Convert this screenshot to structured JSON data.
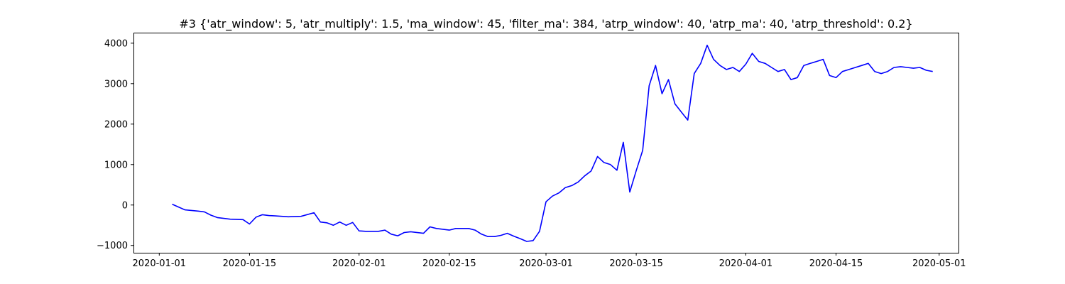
{
  "chart_data": {
    "type": "line",
    "title": "#3 {'atr_window': 5, 'atr_multiply': 1.5, 'ma_window': 45, 'filter_ma': 384, 'atrp_window': 40, 'atrp_ma': 40, 'atrp_threshold': 0.2}",
    "xlabel": "",
    "ylabel": "",
    "xlim": [
      "2019-12-28",
      "2020-05-04"
    ],
    "ylim": [
      -1180,
      4260
    ],
    "grid": false,
    "x_ticks": [
      "2020-01-01",
      "2020-01-15",
      "2020-02-01",
      "2020-02-15",
      "2020-03-01",
      "2020-03-15",
      "2020-04-01",
      "2020-04-15",
      "2020-05-01"
    ],
    "y_ticks": [
      -1000,
      0,
      1000,
      2000,
      3000,
      4000
    ],
    "series": [
      {
        "color": "#0000ff",
        "x": [
          "2020-01-03",
          "2020-01-04",
          "2020-01-05",
          "2020-01-07",
          "2020-01-08",
          "2020-01-09",
          "2020-01-10",
          "2020-01-12",
          "2020-01-14",
          "2020-01-15",
          "2020-01-16",
          "2020-01-17",
          "2020-01-18",
          "2020-01-19",
          "2020-01-21",
          "2020-01-23",
          "2020-01-25",
          "2020-01-26",
          "2020-01-27",
          "2020-01-28",
          "2020-01-29",
          "2020-01-30",
          "2020-01-31",
          "2020-02-01",
          "2020-02-02",
          "2020-02-04",
          "2020-02-05",
          "2020-02-06",
          "2020-02-07",
          "2020-02-08",
          "2020-02-09",
          "2020-02-11",
          "2020-02-12",
          "2020-02-13",
          "2020-02-14",
          "2020-02-15",
          "2020-02-16",
          "2020-02-18",
          "2020-02-19",
          "2020-02-20",
          "2020-02-21",
          "2020-02-22",
          "2020-02-23",
          "2020-02-24",
          "2020-02-25",
          "2020-02-26",
          "2020-02-27",
          "2020-02-28",
          "2020-02-29",
          "2020-03-01",
          "2020-03-02",
          "2020-03-03",
          "2020-03-04",
          "2020-03-05",
          "2020-03-06",
          "2020-03-07",
          "2020-03-08",
          "2020-03-09",
          "2020-03-10",
          "2020-03-11",
          "2020-03-12",
          "2020-03-13",
          "2020-03-14",
          "2020-03-15",
          "2020-03-16",
          "2020-03-17",
          "2020-03-18",
          "2020-03-19",
          "2020-03-20",
          "2020-03-21",
          "2020-03-22",
          "2020-03-23",
          "2020-03-24",
          "2020-03-25",
          "2020-03-26",
          "2020-03-27",
          "2020-03-28",
          "2020-03-29",
          "2020-03-30",
          "2020-03-31",
          "2020-04-01",
          "2020-04-02",
          "2020-04-03",
          "2020-04-04",
          "2020-04-05",
          "2020-04-06",
          "2020-04-07",
          "2020-04-08",
          "2020-04-09",
          "2020-04-10",
          "2020-04-11",
          "2020-04-12",
          "2020-04-13",
          "2020-04-14",
          "2020-04-15",
          "2020-04-16",
          "2020-04-17",
          "2020-04-18",
          "2020-04-19",
          "2020-04-20",
          "2020-04-21",
          "2020-04-22",
          "2020-04-23",
          "2020-04-24",
          "2020-04-25",
          "2020-04-26",
          "2020-04-27",
          "2020-04-28",
          "2020-04-29",
          "2020-04-30"
        ],
        "values": [
          20,
          -50,
          -120,
          -150,
          -170,
          -250,
          -310,
          -350,
          -360,
          -470,
          -300,
          -240,
          -260,
          -270,
          -290,
          -280,
          -190,
          -420,
          -440,
          -500,
          -420,
          -500,
          -430,
          -640,
          -650,
          -650,
          -620,
          -720,
          -760,
          -680,
          -660,
          -700,
          -540,
          -580,
          -600,
          -620,
          -580,
          -580,
          -620,
          -720,
          -780,
          -780,
          -750,
          -700,
          -770,
          -830,
          -900,
          -880,
          -650,
          80,
          220,
          300,
          430,
          480,
          570,
          720,
          840,
          1200,
          1050,
          1000,
          860,
          1550,
          320,
          850,
          1350,
          2950,
          3450,
          2750,
          3100,
          2500,
          2300,
          2100,
          3250,
          3500,
          3950,
          3600,
          3450,
          3350,
          3400,
          3300,
          3480,
          3750,
          3550,
          3500,
          3400,
          3300,
          3350,
          3100,
          3150,
          3450,
          3500,
          3550,
          3600,
          3200,
          3150,
          3300,
          3350,
          3400,
          3450,
          3500,
          3300,
          3250,
          3300,
          3400,
          3420,
          3400,
          3380,
          3400,
          3330,
          3300
        ]
      }
    ]
  }
}
